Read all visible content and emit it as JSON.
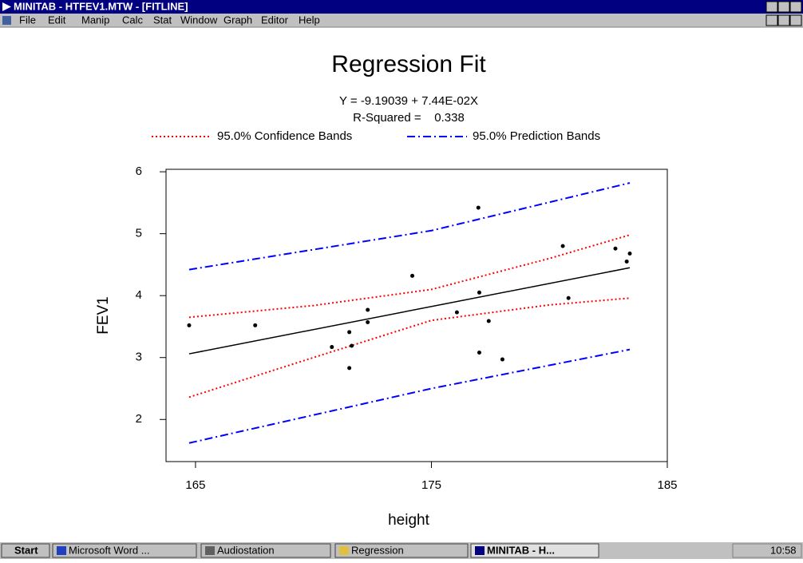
{
  "window": {
    "title": "MINITAB - HTFEV1.MTW - [FITLINE]"
  },
  "menu": [
    "File",
    "Edit",
    "Manip",
    "Calc",
    "Stat",
    "Window",
    "Graph",
    "Editor",
    "Help"
  ],
  "taskbar": {
    "start": "Start",
    "items": [
      "Microsoft Word ...",
      "Audiostation",
      "Regression",
      "MINITAB - H..."
    ],
    "clock": "10:58"
  },
  "chart_data": {
    "type": "scatter",
    "title": "Regression Fit",
    "subtitle": [
      "Y = -9.19039 + 7.44E-02X",
      "R-Squared =    0.338"
    ],
    "xlabel": "height",
    "ylabel": "FEV1",
    "xlim": [
      163.75,
      185
    ],
    "ylim": [
      1.32,
      6.04
    ],
    "xticks": [
      165,
      175,
      185
    ],
    "yticks": [
      2,
      3,
      4,
      5,
      6
    ],
    "points": {
      "color": "#000000",
      "x": [
        164.73,
        167.53,
        170.78,
        171.52,
        171.62,
        171.52,
        172.3,
        172.3,
        174.19,
        176.08,
        176.99,
        177.03,
        177.03,
        177.43,
        178.01,
        180.57,
        180.81,
        182.8,
        183.28,
        183.41
      ],
      "values": [
        3.52,
        3.52,
        3.17,
        3.41,
        3.19,
        2.83,
        3.77,
        3.57,
        4.32,
        3.73,
        5.42,
        4.05,
        3.08,
        3.59,
        2.97,
        4.8,
        3.96,
        4.76,
        4.55,
        4.68
      ]
    },
    "fit": {
      "color": "#000000",
      "x": [
        164.73,
        183.41
      ],
      "values": [
        3.06,
        4.45
      ]
    },
    "bands": [
      {
        "name": "95.0% Confidence Bands",
        "color": "#ff0000",
        "dash": "dotted",
        "x": [
          164.73,
          170,
          175,
          180,
          183.41
        ],
        "upper": [
          3.65,
          3.84,
          4.1,
          4.6,
          4.98
        ],
        "lower": [
          2.36,
          3.0,
          3.6,
          3.85,
          3.96
        ]
      },
      {
        "name": "95.0% Prediction Bands",
        "color": "#0000ff",
        "dash": "dashdot",
        "x": [
          164.73,
          175,
          183.41
        ],
        "upper": [
          4.42,
          5.05,
          5.82
        ],
        "lower": [
          1.62,
          2.5,
          3.13
        ]
      }
    ]
  }
}
